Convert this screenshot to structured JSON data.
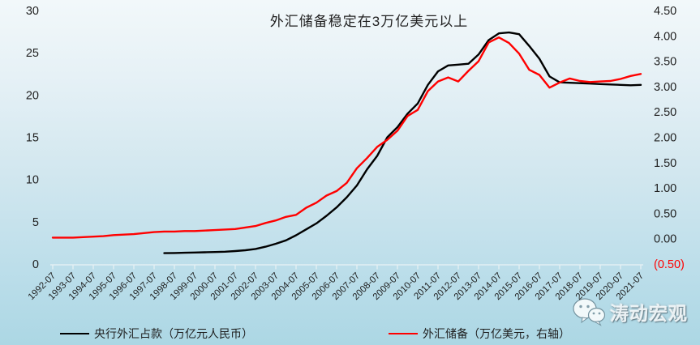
{
  "title": "外汇储备稳定在3万亿美元以上",
  "watermark": {
    "icon": "wechat-icon",
    "text": "涛动宏观"
  },
  "colors": {
    "series_black": "#000000",
    "series_red": "#ff0000",
    "axis_line": "#e9f2f5",
    "tick_label": "#1f1f1f",
    "negative_label": "#ff0000",
    "background_top": "#f2f8fa",
    "background_bottom": "#acd7e4"
  },
  "chart_data": {
    "type": "line",
    "title": "外汇储备稳定在3万亿美元以上",
    "grid": false,
    "legend_position": "bottom",
    "categories": [
      "1992-07",
      "1993-07",
      "1994-07",
      "1995-07",
      "1996-07",
      "1997-07",
      "1998-07",
      "1999-07",
      "2000-07",
      "2001-07",
      "2002-07",
      "2003-07",
      "2004-07",
      "2005-07",
      "2006-07",
      "2007-07",
      "2008-07",
      "2009-07",
      "2010-07",
      "2011-07",
      "2012-07",
      "2013-07",
      "2014-07",
      "2015-07",
      "2016-07",
      "2017-07",
      "2018-07",
      "2019-07",
      "2020-07",
      "2021-07"
    ],
    "left_axis": {
      "min": 0,
      "max": 30,
      "ticks": [
        {
          "label": "30",
          "value": 30
        },
        {
          "label": "25",
          "value": 25
        },
        {
          "label": "20",
          "value": 20
        },
        {
          "label": "15",
          "value": 15
        },
        {
          "label": "10",
          "value": 10
        },
        {
          "label": "5",
          "value": 5
        },
        {
          "label": "0",
          "value": 0
        }
      ]
    },
    "right_axis": {
      "min": -0.5,
      "max": 4.5,
      "ticks": [
        {
          "label": "4.50",
          "value": 4.5
        },
        {
          "label": "4.00",
          "value": 4.0
        },
        {
          "label": "3.50",
          "value": 3.5
        },
        {
          "label": "3.00",
          "value": 3.0
        },
        {
          "label": "2.50",
          "value": 2.5
        },
        {
          "label": "2.00",
          "value": 2.0
        },
        {
          "label": "1.50",
          "value": 1.5
        },
        {
          "label": "1.00",
          "value": 1.0
        },
        {
          "label": "0.50",
          "value": 0.5
        },
        {
          "label": "0.00",
          "value": 0.0
        },
        {
          "label": "(0.50)",
          "value": -0.5
        }
      ]
    },
    "series": [
      {
        "name": "央行外汇占款（万亿元人民币）",
        "color": "#000000",
        "axis": "left",
        "start_index": 5.5,
        "index_step": 0.5,
        "values": [
          1.28,
          1.3,
          1.33,
          1.36,
          1.39,
          1.42,
          1.46,
          1.53,
          1.63,
          1.78,
          2.05,
          2.4,
          2.8,
          3.4,
          4.1,
          4.8,
          5.7,
          6.7,
          7.9,
          9.3,
          11.2,
          12.8,
          15.0,
          16.2,
          17.8,
          19.0,
          21.2,
          22.8,
          23.5,
          23.6,
          23.7,
          24.8,
          26.5,
          27.3,
          27.4,
          27.2,
          25.8,
          24.3,
          22.2,
          21.5,
          21.45,
          21.4,
          21.35,
          21.3,
          21.25,
          21.2,
          21.15,
          21.2
        ]
      },
      {
        "name": "外汇储备（万亿美元，右轴）",
        "color": "#ff0000",
        "axis": "right",
        "start_index": 0,
        "index_step": 0.5,
        "values": [
          0.02,
          0.02,
          0.02,
          0.03,
          0.04,
          0.05,
          0.07,
          0.08,
          0.09,
          0.11,
          0.13,
          0.14,
          0.14,
          0.15,
          0.15,
          0.16,
          0.17,
          0.18,
          0.19,
          0.22,
          0.25,
          0.31,
          0.36,
          0.43,
          0.47,
          0.61,
          0.71,
          0.85,
          0.94,
          1.1,
          1.39,
          1.59,
          1.81,
          1.95,
          2.13,
          2.42,
          2.54,
          2.91,
          3.1,
          3.18,
          3.1,
          3.31,
          3.5,
          3.87,
          3.97,
          3.86,
          3.65,
          3.33,
          3.23,
          2.98,
          3.08,
          3.16,
          3.11,
          3.09,
          3.1,
          3.11,
          3.15,
          3.21,
          3.25
        ]
      }
    ]
  }
}
